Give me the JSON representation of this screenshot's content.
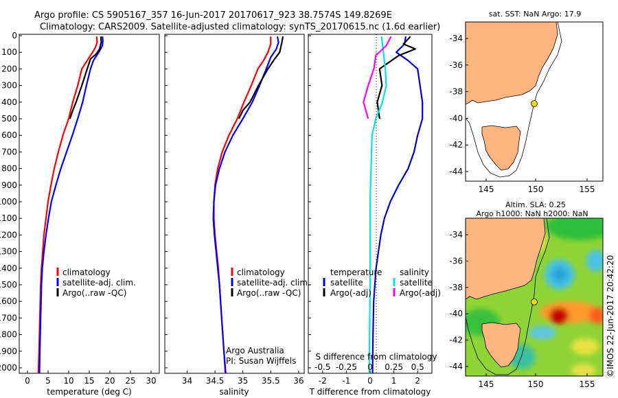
{
  "header": {
    "line1": "Argo profile: CS 5905167_357 16-Jun-2017 20170617_923 38.7574S 149.8269E",
    "line2": "Climatology: CARS2009. Satellite-adjusted climatology: synTS_20170615.nc (1.6d earlier)"
  },
  "colors": {
    "clim": "#ff0000",
    "sat": "#0000ff",
    "argo": "#000000",
    "t_sat": "#0000cc",
    "s_sat": "#00e5e5",
    "s_argo": "#ff00ff",
    "land": "#ffb580"
  },
  "depth_ticks": [
    "0",
    "100",
    "200",
    "300",
    "400",
    "500",
    "600",
    "700",
    "800",
    "900",
    "1000",
    "1100",
    "1200",
    "1300",
    "1400",
    "1500",
    "1600",
    "1700",
    "1800",
    "1900",
    "2000"
  ],
  "chart_data": [
    {
      "type": "line",
      "id": "temperature",
      "xlabel": "temperature (deg C)",
      "ylabel": "",
      "xlim": [
        -2,
        32
      ],
      "ylim": [
        2070,
        0
      ],
      "xticks": [
        "0",
        "5",
        "10",
        "15",
        "20",
        "25",
        "30"
      ],
      "legend": [
        "climatology",
        "satellite-adj. clim.",
        "Argo(..raw -QC)"
      ],
      "series": [
        {
          "name": "climatology",
          "color": "clim",
          "points": [
            [
              16.8,
              5
            ],
            [
              16.9,
              40
            ],
            [
              16.5,
              70
            ],
            [
              15.8,
              100
            ],
            [
              14.5,
              150
            ],
            [
              13.2,
              200
            ],
            [
              12.2,
              300
            ],
            [
              11.0,
              400
            ],
            [
              10.0,
              500
            ],
            [
              8.6,
              600
            ],
            [
              7.5,
              700
            ],
            [
              6.5,
              800
            ],
            [
              5.7,
              900
            ],
            [
              5.0,
              1000
            ],
            [
              4.5,
              1100
            ],
            [
              4.0,
              1200
            ],
            [
              3.7,
              1300
            ],
            [
              3.4,
              1400
            ],
            [
              3.2,
              1500
            ],
            [
              3.0,
              1700
            ],
            [
              2.8,
              1900
            ],
            [
              2.6,
              2060
            ]
          ]
        },
        {
          "name": "satellite-adj. clim.",
          "color": "sat",
          "points": [
            [
              18.2,
              5
            ],
            [
              18.3,
              30
            ],
            [
              18.2,
              60
            ],
            [
              17.3,
              100
            ],
            [
              16.0,
              150
            ],
            [
              15.3,
              200
            ],
            [
              14.3,
              300
            ],
            [
              13.4,
              400
            ],
            [
              12.2,
              500
            ],
            [
              10.9,
              600
            ],
            [
              9.5,
              700
            ],
            [
              8.1,
              800
            ],
            [
              6.9,
              900
            ],
            [
              5.8,
              1000
            ],
            [
              5.1,
              1100
            ],
            [
              4.5,
              1200
            ],
            [
              4.0,
              1300
            ],
            [
              3.6,
              1400
            ],
            [
              3.4,
              1500
            ],
            [
              3.2,
              1700
            ],
            [
              3.0,
              1900
            ],
            [
              2.9,
              2060
            ]
          ]
        },
        {
          "name": "Argo(..raw -QC)",
          "color": "argo",
          "points": [
            [
              17.8,
              5
            ],
            [
              17.9,
              40
            ],
            [
              17.5,
              80
            ],
            [
              16.7,
              110
            ],
            [
              15.3,
              140
            ],
            [
              14.5,
              200
            ],
            [
              13.2,
              300
            ],
            [
              11.8,
              400
            ],
            [
              11.0,
              450
            ],
            [
              10.3,
              500
            ]
          ]
        }
      ]
    },
    {
      "type": "line",
      "id": "salinity",
      "xlabel": "salinity",
      "ylabel": "",
      "xlim": [
        33.6,
        36.1
      ],
      "ylim": [
        2070,
        0
      ],
      "xticks": [
        "34",
        "34.5",
        "35",
        "35.5",
        "36"
      ],
      "legend": [
        "climatology",
        "satellite-adj. clim.",
        "Argo(..raw -QC)"
      ],
      "annotation": [
        "Argo Australia",
        "PI: Susan Wijffels"
      ],
      "series": [
        {
          "name": "climatology",
          "color": "clim",
          "points": [
            [
              35.5,
              5
            ],
            [
              35.5,
              50
            ],
            [
              35.45,
              100
            ],
            [
              35.37,
              150
            ],
            [
              35.27,
              200
            ],
            [
              35.15,
              300
            ],
            [
              35.02,
              400
            ],
            [
              34.9,
              500
            ],
            [
              34.75,
              600
            ],
            [
              34.63,
              700
            ],
            [
              34.55,
              800
            ],
            [
              34.5,
              900
            ],
            [
              34.48,
              1000
            ],
            [
              34.48,
              1100
            ],
            [
              34.5,
              1200
            ],
            [
              34.53,
              1300
            ],
            [
              34.56,
              1400
            ],
            [
              34.58,
              1500
            ],
            [
              34.62,
              1700
            ],
            [
              34.66,
              1900
            ],
            [
              34.69,
              2060
            ]
          ]
        },
        {
          "name": "satellite-adj. clim.",
          "color": "sat",
          "points": [
            [
              35.62,
              5
            ],
            [
              35.64,
              40
            ],
            [
              35.6,
              80
            ],
            [
              35.5,
              130
            ],
            [
              35.42,
              200
            ],
            [
              35.3,
              300
            ],
            [
              35.17,
              400
            ],
            [
              35.0,
              500
            ],
            [
              34.82,
              600
            ],
            [
              34.68,
              700
            ],
            [
              34.58,
              800
            ],
            [
              34.51,
              900
            ],
            [
              34.48,
              1000
            ],
            [
              34.47,
              1100
            ],
            [
              34.49,
              1200
            ],
            [
              34.52,
              1300
            ],
            [
              34.55,
              1400
            ],
            [
              34.58,
              1500
            ],
            [
              34.62,
              1700
            ],
            [
              34.66,
              1900
            ],
            [
              34.7,
              2060
            ]
          ]
        },
        {
          "name": "Argo(..raw -QC)",
          "color": "argo",
          "points": [
            [
              35.72,
              5
            ],
            [
              35.7,
              40
            ],
            [
              35.66,
              100
            ],
            [
              35.57,
              140
            ],
            [
              35.45,
              200
            ],
            [
              35.28,
              300
            ],
            [
              35.13,
              400
            ],
            [
              35.0,
              450
            ],
            [
              34.93,
              500
            ]
          ]
        }
      ]
    },
    {
      "type": "line",
      "id": "difference",
      "xlabel": "T difference from climatology",
      "xlabel2": "S difference from climatology",
      "xlim": [
        -2.6,
        2.6
      ],
      "ylim": [
        2070,
        0
      ],
      "xticks": [
        "-2",
        "-1",
        "0",
        "1",
        "2"
      ],
      "s_xticks": [
        "-0.5",
        "-0.25",
        "0",
        "0.25",
        "0.5"
      ],
      "legend_t_title": "temperature",
      "legend_s_title": "salinity",
      "legend_t": [
        "satellite",
        "Argo(-adj)"
      ],
      "legend_s": [
        "satellite",
        "Argo(-adj)"
      ],
      "series": [
        {
          "name": "T satellite",
          "color": "t_sat",
          "points": [
            [
              1.5,
              5
            ],
            [
              1.45,
              50
            ],
            [
              1.1,
              100
            ],
            [
              1.6,
              150
            ],
            [
              2.0,
              200
            ],
            [
              2.1,
              300
            ],
            [
              2.2,
              400
            ],
            [
              2.2,
              500
            ],
            [
              2.0,
              600
            ],
            [
              1.85,
              700
            ],
            [
              1.6,
              800
            ],
            [
              1.2,
              900
            ],
            [
              0.85,
              1000
            ],
            [
              0.6,
              1100
            ],
            [
              0.45,
              1200
            ],
            [
              0.35,
              1300
            ],
            [
              0.25,
              1400
            ],
            [
              0.2,
              1500
            ],
            [
              0.15,
              1600
            ],
            [
              0.12,
              1800
            ],
            [
              0.1,
              2060
            ]
          ]
        },
        {
          "name": "T Argo(-adj)",
          "color": "argo",
          "points": [
            [
              1.7,
              5
            ],
            [
              1.4,
              50
            ],
            [
              1.9,
              80
            ],
            [
              1.2,
              120
            ],
            [
              0.8,
              160
            ],
            [
              0.4,
              200
            ],
            [
              0.5,
              300
            ],
            [
              0.3,
              400
            ],
            [
              0.4,
              500
            ]
          ]
        },
        {
          "name": "S satellite",
          "color": "s_sat",
          "points": [
            [
              0.12,
              5
            ],
            [
              0.14,
              100
            ],
            [
              0.16,
              200
            ],
            [
              0.17,
              300
            ],
            [
              0.13,
              400
            ],
            [
              0.06,
              500
            ],
            [
              0.02,
              600
            ],
            [
              0.01,
              800
            ],
            [
              0.0,
              1000
            ],
            [
              0.0,
              1500
            ],
            [
              -0.01,
              2060
            ]
          ]
        },
        {
          "name": "S Argo(-adj)",
          "color": "s_argo",
          "points": [
            [
              0.22,
              5
            ],
            [
              0.17,
              60
            ],
            [
              0.06,
              120
            ],
            [
              0.04,
              200
            ],
            [
              -0.02,
              300
            ],
            [
              -0.07,
              400
            ],
            [
              -0.02,
              500
            ]
          ]
        }
      ]
    }
  ],
  "maps": {
    "sst": {
      "title": "sat. SST: NaN Argo: 17.9",
      "yticks": [
        "-34",
        "-36",
        "-38",
        "-40",
        "-42",
        "-44"
      ],
      "xticks": [
        "145",
        "150",
        "155"
      ]
    },
    "sla": {
      "title1": "Altim. SLA: 0.25",
      "title2": "Argo h1000: NaN h2000: NaN",
      "yticks": [
        "-34",
        "-36",
        "-38",
        "-40",
        "-42",
        "-44"
      ],
      "xticks": [
        "145",
        "150",
        "155"
      ]
    }
  },
  "credit": "©IMOS 22-Jun-2017 20:42:20"
}
